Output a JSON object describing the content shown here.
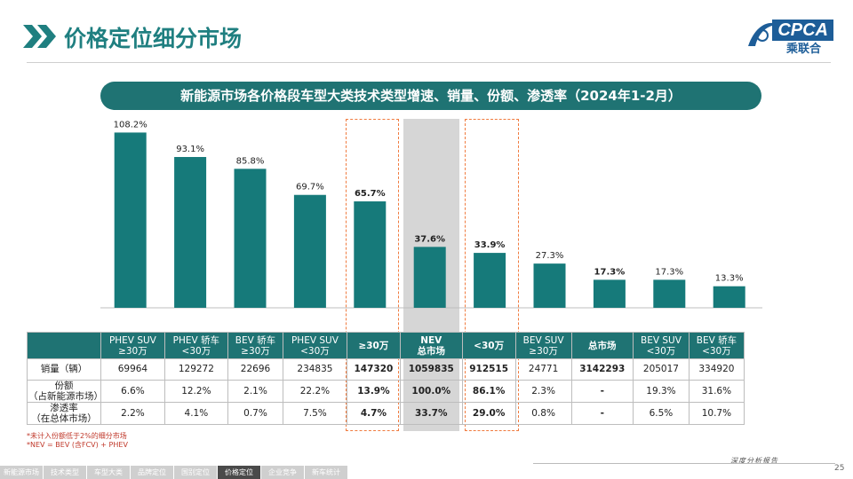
{
  "page_title": "价格定位细分市场",
  "logo": {
    "text": "CPCA",
    "subtitle": "乘联合"
  },
  "chart_title": "新能源市场各价格段车型大类技术类型增速、销量、份额、渗透率（2024年1-2月）",
  "chart_data": {
    "type": "bar",
    "title": "新能源市场各价格段车型大类技术类型增速、销量、份额、渗透率（2024年1-2月）",
    "categories": [
      "PHEV SUV ≥30万",
      "PHEV 轿车 <30万",
      "BEV 轿车 ≥30万",
      "PHEV SUV <30万",
      "≥30万",
      "NEV 总市场",
      "<30万",
      "BEV SUV ≥30万",
      "总市场",
      "BEV SUV <30万",
      "BEV 轿车 <30万"
    ],
    "values": [
      108.2,
      93.1,
      85.8,
      69.7,
      65.7,
      37.6,
      33.9,
      27.3,
      17.3,
      17.3,
      13.3
    ],
    "labels": [
      "108.2%",
      "93.1%",
      "85.8%",
      "69.7%",
      "65.7%",
      "37.6%",
      "33.9%",
      "27.3%",
      "17.3%",
      "17.3%",
      "13.3%"
    ],
    "bold_labels": [
      false,
      false,
      false,
      false,
      true,
      true,
      true,
      false,
      true,
      false,
      false
    ],
    "ylim": [
      0,
      115
    ],
    "bar_color": "#167a7a",
    "grid": false,
    "legend": "none"
  },
  "table": {
    "headers": [
      [
        "PHEV SUV",
        "≥30万"
      ],
      [
        "PHEV 轿车",
        "<30万"
      ],
      [
        "BEV 轿车",
        "≥30万"
      ],
      [
        "PHEV SUV",
        "<30万"
      ],
      [
        "≥30万",
        ""
      ],
      [
        "NEV",
        "总市场"
      ],
      [
        "<30万",
        ""
      ],
      [
        "BEV SUV",
        "≥30万"
      ],
      [
        "总市场",
        ""
      ],
      [
        "BEV SUV",
        "<30万"
      ],
      [
        "BEV 轿车",
        "<30万"
      ]
    ],
    "rows": [
      {
        "label": [
          "销量（辆）",
          ""
        ],
        "cells": [
          "69964",
          "129272",
          "22696",
          "234835",
          "147320",
          "1059835",
          "912515",
          "24771",
          "3142293",
          "205017",
          "334920"
        ]
      },
      {
        "label": [
          "份额",
          "（占新能源市场）"
        ],
        "cells": [
          "6.6%",
          "12.2%",
          "2.1%",
          "22.2%",
          "13.9%",
          "100.0%",
          "86.1%",
          "2.3%",
          "-",
          "19.3%",
          "31.6%"
        ]
      },
      {
        "label": [
          "渗透率",
          "（在总体市场）"
        ],
        "cells": [
          "2.2%",
          "4.1%",
          "0.7%",
          "7.5%",
          "4.7%",
          "33.7%",
          "29.0%",
          "0.8%",
          "-",
          "6.5%",
          "10.7%"
        ]
      }
    ]
  },
  "notes": [
    "*未计入份额低于2%的细分市场",
    "*NEV = BEV (含FCV) + PHEV"
  ],
  "footer_tag": "深度分析报告",
  "page_number": "25",
  "nav_items": [
    "新能源市场",
    "技术类型",
    "车型大类",
    "品牌定位",
    "国别定位",
    "价格定位",
    "企业竞争",
    "新车统计"
  ],
  "nav_active_index": 5,
  "colors": {
    "teal": "#1f7373",
    "bar": "#167a7a",
    "highlight_dash": "#f07b3f",
    "nev_shade": "#d6d6d6"
  }
}
